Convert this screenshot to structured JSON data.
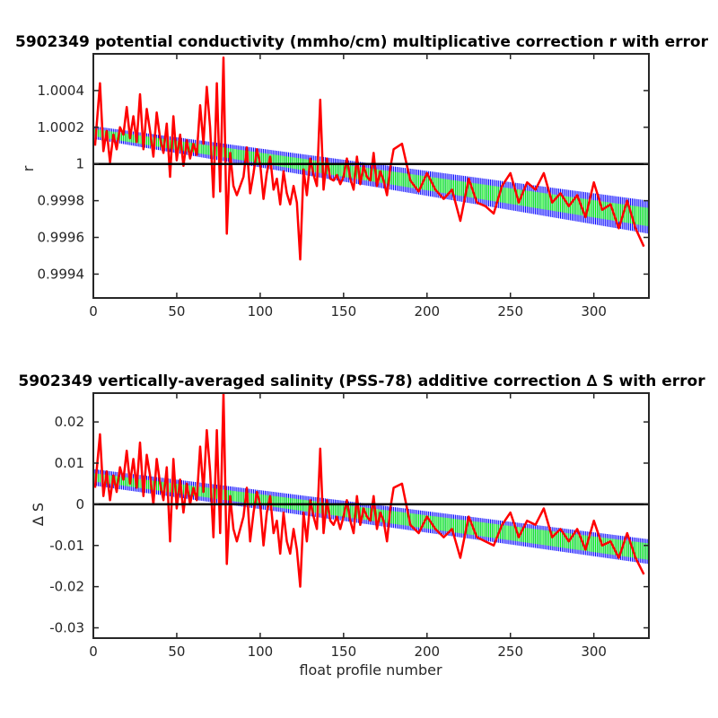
{
  "chart_data": [
    {
      "type": "line",
      "title": "5902349 potential conductivity (mmho/cm) multiplicative correction r with error",
      "xlabel": "",
      "ylabel": "r",
      "xlim": [
        0,
        333
      ],
      "ylim": [
        0.99927,
        1.0006
      ],
      "x_ticks": [
        0,
        50,
        100,
        150,
        200,
        250,
        300
      ],
      "x_tick_labels": [
        "0",
        "50",
        "100",
        "150",
        "200",
        "250",
        "300"
      ],
      "y_ticks": [
        0.9994,
        0.9996,
        0.9998,
        1.0,
        1.0002,
        1.0004
      ],
      "y_tick_labels": [
        "0.9994",
        "0.9996",
        "0.9998",
        "1",
        "1.0002",
        "1.0004"
      ],
      "reference_line": {
        "y": 1.0,
        "color": "#000000"
      },
      "error_band": {
        "x_start": 1,
        "x_end": 333,
        "upper_start": 1.000205,
        "upper_end": 0.9998,
        "lower_start": 1.000135,
        "lower_end": 0.99962,
        "inner_upper_start": 1.00019,
        "inner_upper_end": 0.99976,
        "inner_lower_start": 1.00015,
        "inner_lower_end": 0.99966,
        "outer_color": "#0000ff",
        "inner_color": "#00ff00"
      },
      "series": [
        {
          "color": "#ff0000",
          "x": [
            1,
            4,
            6,
            8,
            10,
            12,
            14,
            16,
            18,
            20,
            22,
            24,
            26,
            28,
            30,
            32,
            34,
            36,
            38,
            40,
            42,
            44,
            46,
            48,
            50,
            52,
            54,
            56,
            58,
            60,
            62,
            64,
            66,
            68,
            70,
            72,
            74,
            76,
            78,
            80,
            82,
            84,
            86,
            88,
            90,
            92,
            94,
            96,
            98,
            100,
            102,
            104,
            106,
            108,
            110,
            112,
            114,
            116,
            118,
            120,
            122,
            124,
            126,
            128,
            130,
            132,
            134,
            136,
            138,
            140,
            142,
            144,
            146,
            148,
            150,
            152,
            154,
            156,
            158,
            160,
            162,
            164,
            166,
            168,
            170,
            172,
            174,
            176,
            178,
            180,
            185,
            190,
            195,
            200,
            205,
            210,
            215,
            220,
            225,
            230,
            235,
            240,
            245,
            250,
            255,
            260,
            265,
            270,
            275,
            280,
            285,
            290,
            295,
            300,
            305,
            310,
            315,
            320,
            325,
            330
          ],
          "y": [
            1.0001,
            1.00044,
            1.00007,
            1.00018,
            1.00001,
            1.00016,
            1.00008,
            1.0002,
            1.00016,
            1.00031,
            1.00014,
            1.00026,
            1.00012,
            1.00038,
            1.00008,
            1.0003,
            1.00018,
            1.00004,
            1.00028,
            1.00014,
            1.00006,
            1.00022,
            0.99993,
            1.00026,
            1.00002,
            1.00016,
            0.99999,
            1.00013,
            1.00003,
            1.00011,
            1.00005,
            1.00032,
            1.00011,
            1.00042,
            1.0002,
            0.99982,
            1.00044,
            0.99985,
            1.00058,
            0.99962,
            1.00006,
            0.99988,
            0.99983,
            0.99988,
            0.99993,
            1.00009,
            0.99984,
            0.99995,
            1.00008,
            1.0,
            0.99981,
            0.99995,
            1.00004,
            0.99986,
            0.99992,
            0.99978,
            0.99996,
            0.99984,
            0.99978,
            0.99988,
            0.99979,
            0.99948,
            0.99997,
            0.99983,
            1.00003,
            0.99994,
            0.99988,
            1.00035,
            0.99986,
            1.00003,
            0.99992,
            0.99991,
            0.99994,
            0.99989,
            0.99993,
            1.00003,
            0.99992,
            0.99986,
            1.00004,
            0.99989,
            0.99999,
            0.99993,
            0.99991,
            1.00006,
            0.99988,
            0.99996,
            0.99991,
            0.99983,
            0.99998,
            1.00008,
            1.00011,
            0.99991,
            0.99985,
            0.99995,
            0.99986,
            0.99981,
            0.99986,
            0.99969,
            0.99992,
            0.99979,
            0.99977,
            0.99973,
            0.99988,
            0.99995,
            0.99979,
            0.9999,
            0.99986,
            0.99995,
            0.99979,
            0.99984,
            0.99977,
            0.99983,
            0.99971,
            0.9999,
            0.99975,
            0.99978,
            0.99965,
            0.9998,
            0.99965,
            0.99955
          ]
        }
      ]
    },
    {
      "type": "line",
      "title": "5902349 vertically-averaged salinity (PSS-78) additive correction ∆ S with error",
      "xlabel": "float profile number",
      "ylabel": "∆ S",
      "xlim": [
        0,
        333
      ],
      "ylim": [
        -0.0325,
        0.027
      ],
      "x_ticks": [
        0,
        50,
        100,
        150,
        200,
        250,
        300
      ],
      "x_tick_labels": [
        "0",
        "50",
        "100",
        "150",
        "200",
        "250",
        "300"
      ],
      "y_ticks": [
        -0.03,
        -0.02,
        -0.01,
        0,
        0.01,
        0.02
      ],
      "y_tick_labels": [
        "-0.03",
        "-0.02",
        "-0.01",
        "0",
        "0.01",
        "0.02"
      ],
      "reference_line": {
        "y": 0,
        "color": "#000000"
      },
      "error_band": {
        "x_start": 1,
        "x_end": 333,
        "upper_start": 0.0085,
        "upper_end": -0.0085,
        "lower_start": 0.0045,
        "lower_end": -0.0145,
        "inner_upper_start": 0.0075,
        "inner_upper_end": -0.0095,
        "inner_lower_start": 0.0055,
        "inner_lower_end": -0.0135,
        "outer_color": "#0000ff",
        "inner_color": "#00ff00"
      },
      "series": [
        {
          "color": "#ff0000",
          "x": [
            1,
            4,
            6,
            8,
            10,
            12,
            14,
            16,
            18,
            20,
            22,
            24,
            26,
            28,
            30,
            32,
            34,
            36,
            38,
            40,
            42,
            44,
            46,
            48,
            50,
            52,
            54,
            56,
            58,
            60,
            62,
            64,
            66,
            68,
            70,
            72,
            74,
            76,
            78,
            80,
            82,
            84,
            86,
            88,
            90,
            92,
            94,
            96,
            98,
            100,
            102,
            104,
            106,
            108,
            110,
            112,
            114,
            116,
            118,
            120,
            122,
            124,
            126,
            128,
            130,
            132,
            134,
            136,
            138,
            140,
            142,
            144,
            146,
            148,
            150,
            152,
            154,
            156,
            158,
            160,
            162,
            164,
            166,
            168,
            170,
            172,
            174,
            176,
            178,
            180,
            185,
            190,
            195,
            200,
            205,
            210,
            215,
            220,
            225,
            230,
            235,
            240,
            245,
            250,
            255,
            260,
            265,
            270,
            275,
            280,
            285,
            290,
            295,
            300,
            305,
            310,
            315,
            320,
            325,
            330
          ],
          "y": [
            0.004,
            0.017,
            0.002,
            0.008,
            0.001,
            0.007,
            0.003,
            0.009,
            0.006,
            0.013,
            0.005,
            0.011,
            0.004,
            0.015,
            0.002,
            0.012,
            0.007,
            0.0,
            0.011,
            0.005,
            0.001,
            0.009,
            -0.009,
            0.011,
            -0.001,
            0.006,
            -0.002,
            0.005,
            0.0,
            0.004,
            0.001,
            0.014,
            0.003,
            0.018,
            0.008,
            -0.008,
            0.018,
            -0.007,
            0.027,
            -0.0145,
            0.002,
            -0.006,
            -0.009,
            -0.006,
            -0.003,
            0.004,
            -0.009,
            -0.002,
            0.003,
            0.0,
            -0.01,
            -0.002,
            0.002,
            -0.007,
            -0.004,
            -0.012,
            -0.002,
            -0.009,
            -0.012,
            -0.006,
            -0.011,
            -0.02,
            -0.002,
            -0.009,
            0.001,
            -0.003,
            -0.006,
            0.0135,
            -0.007,
            0.001,
            -0.004,
            -0.005,
            -0.003,
            -0.006,
            -0.003,
            0.001,
            -0.004,
            -0.007,
            0.002,
            -0.005,
            -0.001,
            -0.003,
            -0.004,
            0.002,
            -0.006,
            -0.002,
            -0.004,
            -0.009,
            -0.001,
            0.004,
            0.005,
            -0.005,
            -0.007,
            -0.003,
            -0.006,
            -0.008,
            -0.006,
            -0.013,
            -0.003,
            -0.008,
            -0.009,
            -0.01,
            -0.005,
            -0.002,
            -0.008,
            -0.004,
            -0.005,
            -0.001,
            -0.008,
            -0.006,
            -0.009,
            -0.006,
            -0.011,
            -0.004,
            -0.01,
            -0.009,
            -0.013,
            -0.007,
            -0.013,
            -0.017
          ]
        }
      ]
    }
  ]
}
